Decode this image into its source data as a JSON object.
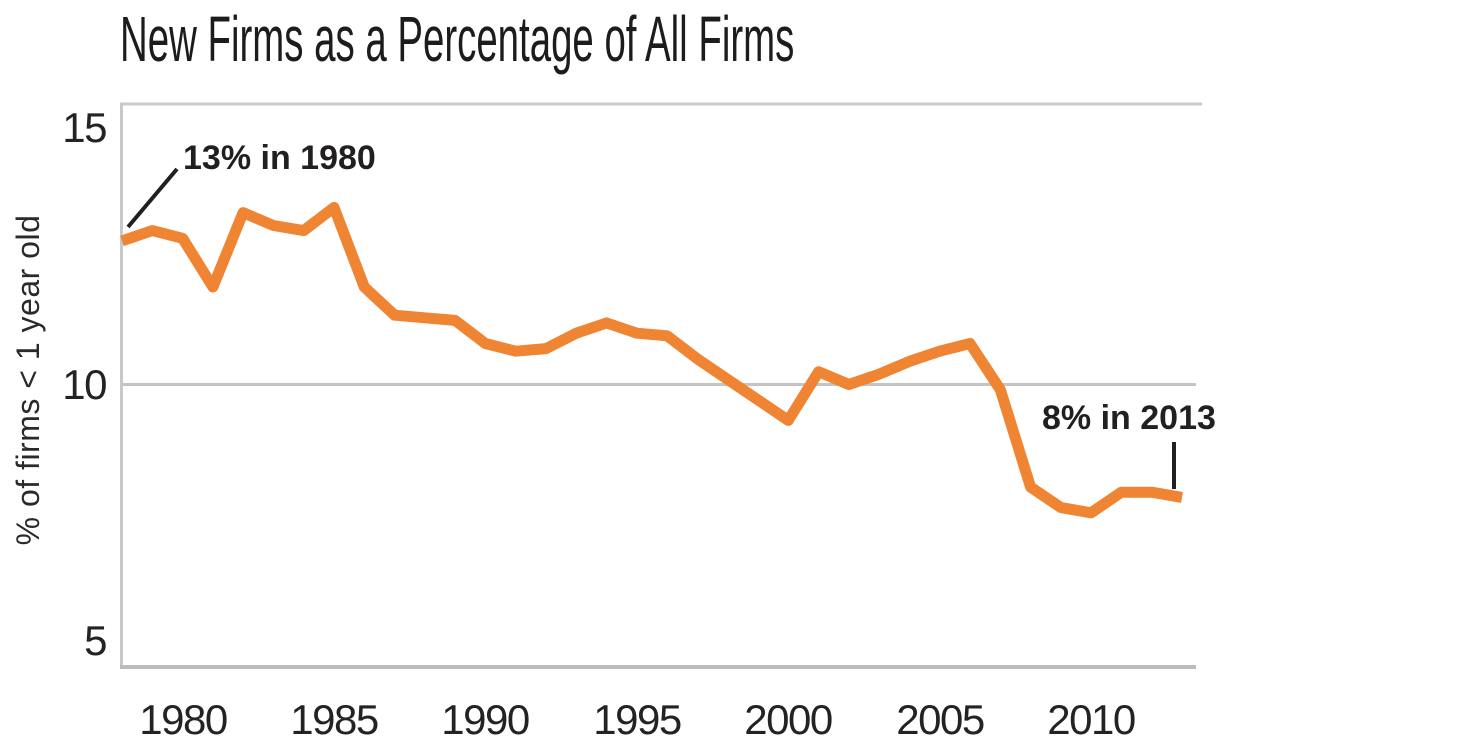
{
  "chart_data": {
    "type": "line",
    "title": "New Firms as a Percentage of All Firms",
    "ylabel": "% of firms < 1 year old",
    "xlabel": "",
    "series_name": "New firms as a percentage of all firms",
    "legend": "none",
    "grid": "single horizontal gridline at y=10",
    "gridline_y": 10,
    "x_range": [
      1978,
      2013
    ],
    "ylim": [
      4.5,
      15.6
    ],
    "yticks": [
      15,
      10,
      5
    ],
    "xticks": [
      1980,
      1985,
      1990,
      1995,
      2000,
      2005,
      2010
    ],
    "x": [
      1978,
      1979,
      1980,
      1981,
      1982,
      1983,
      1984,
      1985,
      1986,
      1987,
      1988,
      1989,
      1990,
      1991,
      1992,
      1993,
      1994,
      1995,
      1996,
      1997,
      1998,
      1999,
      2000,
      2001,
      2002,
      2003,
      2004,
      2005,
      2006,
      2007,
      2008,
      2009,
      2010,
      2011,
      2012,
      2013
    ],
    "values": [
      12.8,
      13.0,
      12.85,
      11.9,
      13.35,
      13.1,
      13.0,
      13.45,
      11.9,
      11.35,
      11.3,
      11.25,
      10.8,
      10.65,
      10.7,
      11.0,
      11.2,
      11.0,
      10.95,
      10.5,
      10.1,
      9.7,
      9.3,
      10.25,
      10.0,
      10.2,
      10.45,
      10.65,
      10.8,
      9.9,
      8.0,
      7.6,
      7.5,
      7.9,
      7.9,
      7.8
    ],
    "annotations": {
      "start": {
        "label": "13% in 1980",
        "year": 1980,
        "value_pct": 13
      },
      "end": {
        "label": "8% in 2013",
        "year": 2013,
        "value_pct": 8
      }
    },
    "colors": {
      "line": "#EF8432",
      "gridline": "#C5C4C4",
      "axis_border": "#C9C8C8",
      "bottom_axis": "#BDBCBC",
      "text": "#242323",
      "title_text": "#1D1C1C",
      "annotation_text": "#221F1F",
      "pointer_line": "#231F20",
      "background": "#FFFFFF"
    }
  }
}
